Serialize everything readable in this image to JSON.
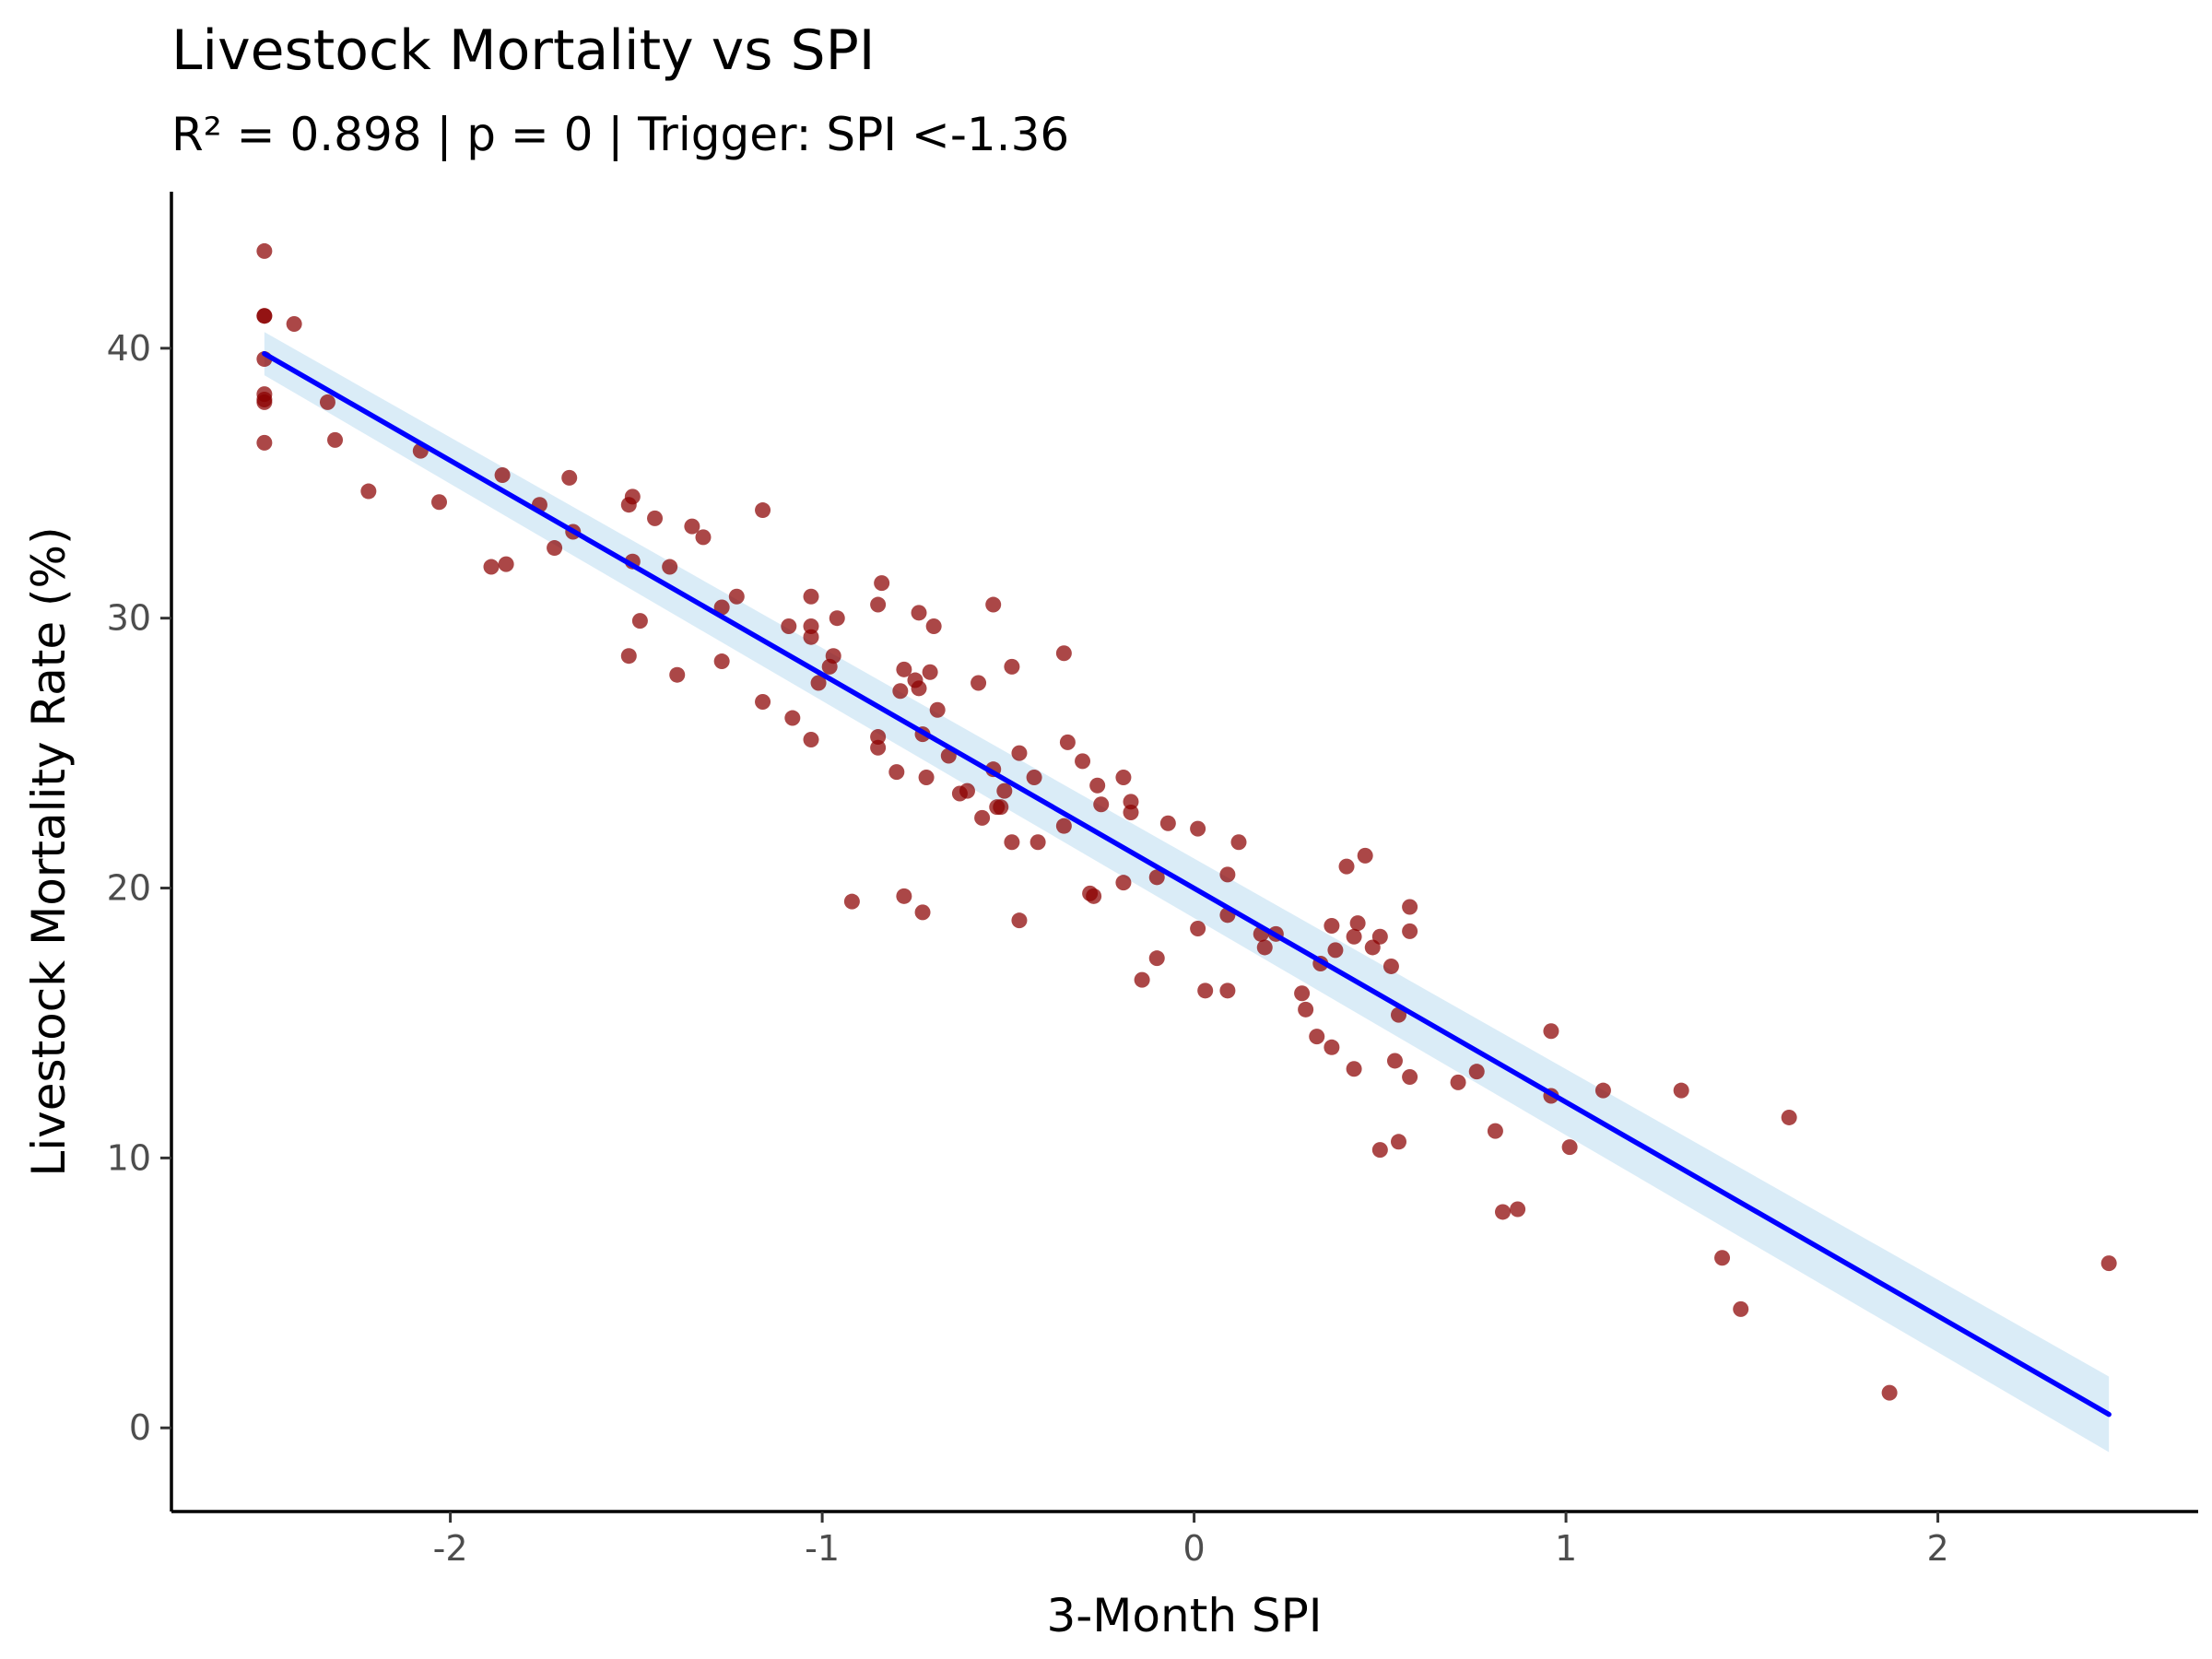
{
  "chart_data": {
    "type": "scatter",
    "title": "Livestock Mortality vs SPI",
    "subtitle": "R² = 0.898 | p = 0 | Trigger: SPI <-1.36",
    "xlabel": "3-Month SPI",
    "ylabel": "Livestock Mortality Rate (%)",
    "xlim": [
      -2.75,
      2.7
    ],
    "ylim": [
      -3.1,
      45.8
    ],
    "x_ticks": [
      -2,
      -1,
      0,
      1,
      2
    ],
    "x_tick_labels": [
      "-2",
      "-1",
      "0",
      "1",
      "2"
    ],
    "y_ticks": [
      0,
      10,
      20,
      30,
      40
    ],
    "y_tick_labels": [
      "0",
      "10",
      "20",
      "30",
      "40"
    ],
    "grid": false,
    "legend": "none",
    "colors": {
      "points": "#8b0000",
      "fit_line": "#0000ff",
      "confidence_band": "#c6e2f2"
    },
    "fit_line": {
      "x": [
        -2.5,
        2.46
      ],
      "y": [
        39.8,
        0.5
      ]
    },
    "confidence_band": {
      "x": [
        -2.5,
        2.46
      ],
      "lower": [
        39.0,
        -0.9
      ],
      "upper": [
        40.6,
        1.9
      ]
    },
    "points": [
      [
        -2.5,
        43.6
      ],
      [
        -2.5,
        41.2
      ],
      [
        -2.5,
        41.2
      ],
      [
        -2.5,
        39.6
      ],
      [
        -2.5,
        38.3
      ],
      [
        -2.5,
        38.0
      ],
      [
        -2.5,
        38.1
      ],
      [
        -2.5,
        36.5
      ],
      [
        -2.42,
        40.9
      ],
      [
        -2.33,
        38.0
      ],
      [
        -2.31,
        36.6
      ],
      [
        -2.22,
        34.7
      ],
      [
        -2.08,
        36.2
      ],
      [
        -2.03,
        34.3
      ],
      [
        -1.89,
        31.9
      ],
      [
        -1.85,
        32.0
      ],
      [
        -1.86,
        35.3
      ],
      [
        -1.76,
        34.2
      ],
      [
        -1.72,
        32.6
      ],
      [
        -1.68,
        35.2
      ],
      [
        -1.67,
        33.2
      ],
      [
        -1.52,
        34.2
      ],
      [
        -1.51,
        34.5
      ],
      [
        -1.51,
        32.1
      ],
      [
        -1.52,
        28.6
      ],
      [
        -1.49,
        29.9
      ],
      [
        -1.45,
        33.7
      ],
      [
        -1.41,
        31.9
      ],
      [
        -1.39,
        27.9
      ],
      [
        -1.35,
        33.4
      ],
      [
        -1.32,
        33.0
      ],
      [
        -1.27,
        30.4
      ],
      [
        -1.27,
        28.4
      ],
      [
        -1.23,
        30.8
      ],
      [
        -1.16,
        34.0
      ],
      [
        -1.16,
        26.9
      ],
      [
        -1.09,
        29.7
      ],
      [
        -1.08,
        26.3
      ],
      [
        -1.03,
        25.5
      ],
      [
        -1.03,
        30.8
      ],
      [
        -1.03,
        29.7
      ],
      [
        -1.03,
        29.3
      ],
      [
        -1.01,
        27.6
      ],
      [
        -0.98,
        28.2
      ],
      [
        -0.97,
        28.6
      ],
      [
        -0.96,
        30.0
      ],
      [
        -0.92,
        19.5
      ],
      [
        -0.85,
        30.5
      ],
      [
        -0.84,
        31.3
      ],
      [
        -0.85,
        25.2
      ],
      [
        -0.85,
        25.6
      ],
      [
        -0.8,
        24.3
      ],
      [
        -0.79,
        27.3
      ],
      [
        -0.78,
        28.1
      ],
      [
        -0.78,
        19.7
      ],
      [
        -0.75,
        27.7
      ],
      [
        -0.74,
        27.4
      ],
      [
        -0.74,
        30.2
      ],
      [
        -0.73,
        25.7
      ],
      [
        -0.72,
        24.1
      ],
      [
        -0.73,
        19.1
      ],
      [
        -0.71,
        28.0
      ],
      [
        -0.7,
        29.7
      ],
      [
        -0.69,
        26.6
      ],
      [
        -0.66,
        24.9
      ],
      [
        -0.63,
        23.5
      ],
      [
        -0.61,
        23.6
      ],
      [
        -0.58,
        27.6
      ],
      [
        -0.57,
        22.6
      ],
      [
        -0.54,
        30.5
      ],
      [
        -0.54,
        24.4
      ],
      [
        -0.53,
        23.0
      ],
      [
        -0.52,
        23.0
      ],
      [
        -0.51,
        23.6
      ],
      [
        -0.49,
        28.2
      ],
      [
        -0.49,
        21.7
      ],
      [
        -0.47,
        25.0
      ],
      [
        -0.47,
        18.8
      ],
      [
        -0.43,
        24.1
      ],
      [
        -0.42,
        21.7
      ],
      [
        -0.35,
        28.7
      ],
      [
        -0.35,
        22.3
      ],
      [
        -0.34,
        25.4
      ],
      [
        -0.3,
        24.7
      ],
      [
        -0.28,
        19.8
      ],
      [
        -0.27,
        19.7
      ],
      [
        -0.26,
        23.8
      ],
      [
        -0.25,
        23.1
      ],
      [
        -0.19,
        24.1
      ],
      [
        -0.19,
        20.2
      ],
      [
        -0.17,
        22.8
      ],
      [
        -0.17,
        23.2
      ],
      [
        -0.14,
        16.6
      ],
      [
        -0.1,
        17.4
      ],
      [
        -0.1,
        20.4
      ],
      [
        -0.07,
        22.4
      ],
      [
        0.01,
        22.2
      ],
      [
        0.01,
        18.5
      ],
      [
        0.03,
        16.2
      ],
      [
        0.09,
        16.2
      ],
      [
        0.09,
        20.5
      ],
      [
        0.09,
        19.0
      ],
      [
        0.12,
        21.7
      ],
      [
        0.18,
        18.3
      ],
      [
        0.19,
        17.8
      ],
      [
        0.22,
        18.3
      ],
      [
        0.29,
        16.1
      ],
      [
        0.3,
        15.5
      ],
      [
        0.33,
        14.5
      ],
      [
        0.34,
        17.2
      ],
      [
        0.37,
        18.6
      ],
      [
        0.37,
        14.1
      ],
      [
        0.38,
        17.7
      ],
      [
        0.41,
        20.8
      ],
      [
        0.43,
        13.3
      ],
      [
        0.43,
        18.2
      ],
      [
        0.44,
        18.7
      ],
      [
        0.46,
        21.2
      ],
      [
        0.48,
        17.8
      ],
      [
        0.5,
        18.2
      ],
      [
        0.5,
        10.3
      ],
      [
        0.53,
        17.1
      ],
      [
        0.54,
        13.6
      ],
      [
        0.55,
        15.3
      ],
      [
        0.55,
        10.6
      ],
      [
        0.58,
        18.4
      ],
      [
        0.58,
        19.3
      ],
      [
        0.58,
        13.0
      ],
      [
        0.71,
        12.8
      ],
      [
        0.76,
        13.2
      ],
      [
        0.81,
        11.0
      ],
      [
        0.83,
        8.0
      ],
      [
        0.87,
        8.1
      ],
      [
        0.96,
        14.7
      ],
      [
        0.96,
        12.3
      ],
      [
        1.01,
        10.4
      ],
      [
        1.1,
        12.5
      ],
      [
        1.31,
        12.5
      ],
      [
        1.42,
        6.3
      ],
      [
        1.47,
        4.4
      ],
      [
        1.6,
        11.5
      ],
      [
        1.87,
        1.3
      ],
      [
        2.46,
        6.1
      ]
    ]
  }
}
